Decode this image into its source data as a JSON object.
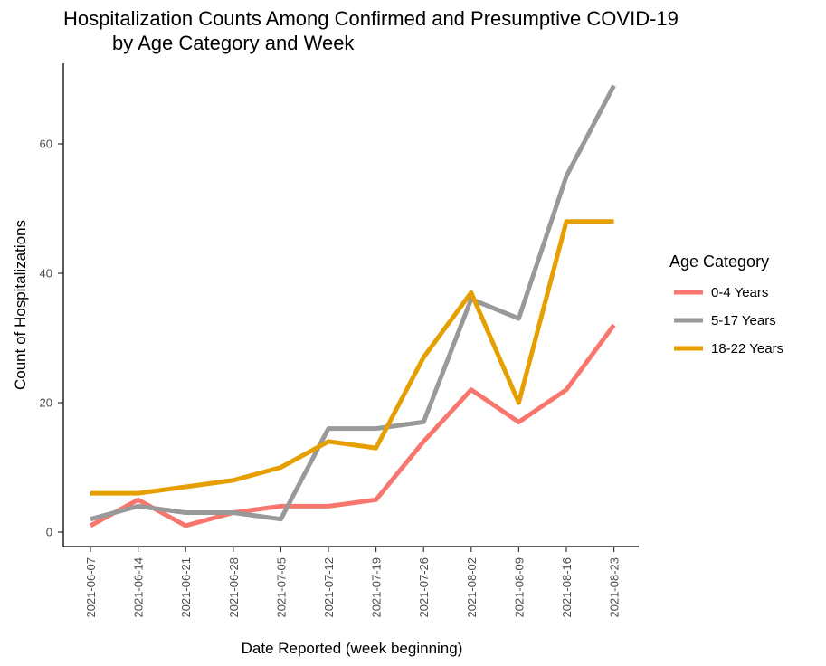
{
  "chart_data": {
    "type": "line",
    "title": "Hospitalization Counts Among Confirmed and Presumptive COVID-19",
    "subtitle": "by Age Category and Week",
    "xlabel": "Date Reported (week beginning)",
    "ylabel": "Count of Hospitalizations",
    "x": [
      "2021-06-07",
      "2021-06-14",
      "2021-06-21",
      "2021-06-28",
      "2021-07-05",
      "2021-07-12",
      "2021-07-19",
      "2021-07-26",
      "2021-08-02",
      "2021-08-09",
      "2021-08-16",
      "2021-08-23"
    ],
    "yticks": [
      "0",
      "20",
      "40",
      "60"
    ],
    "ylim": [
      0,
      70
    ],
    "grid": false,
    "legend": {
      "title": "Age Category",
      "placement": "right"
    },
    "series": [
      {
        "name": "0-4 Years",
        "color": "#F8766D",
        "values": [
          1,
          5,
          1,
          3,
          4,
          4,
          5,
          14,
          22,
          17,
          22,
          32
        ]
      },
      {
        "name": "5-17 Years",
        "color": "#999999",
        "values": [
          2,
          4,
          3,
          3,
          2,
          16,
          16,
          17,
          36,
          33,
          55,
          69
        ]
      },
      {
        "name": "18-22 Years",
        "color": "#E69F00",
        "values": [
          6,
          6,
          7,
          8,
          10,
          14,
          13,
          27,
          37,
          20,
          48,
          48
        ]
      }
    ]
  }
}
